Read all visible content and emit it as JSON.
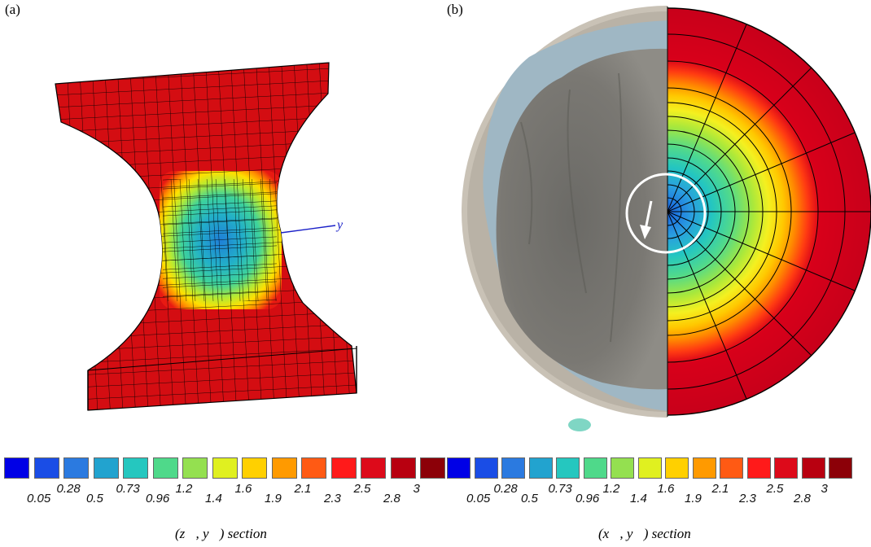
{
  "panels": {
    "a": {
      "label": "(a)",
      "axis_label": "y",
      "caption": "(z⃗, y⃗) section"
    },
    "b": {
      "label": "(b)",
      "caption": "(x⃗, y⃗) section"
    }
  },
  "colormap": {
    "swatches": [
      "#0000e6",
      "#1a4de6",
      "#2b7ae0",
      "#22a3cf",
      "#25c7bf",
      "#4fd98a",
      "#94e050",
      "#e0f020",
      "#ffd000",
      "#ff9a00",
      "#ff5a14",
      "#ff1a1a",
      "#dd0a1a",
      "#b80010",
      "#8c0008"
    ],
    "ticks": [
      "0.05",
      "0.28",
      "0.5",
      "0.73",
      "0.96",
      "1.2",
      "1.4",
      "1.6",
      "1.9",
      "2.1",
      "2.3",
      "2.5",
      "2.8",
      "3"
    ]
  }
}
